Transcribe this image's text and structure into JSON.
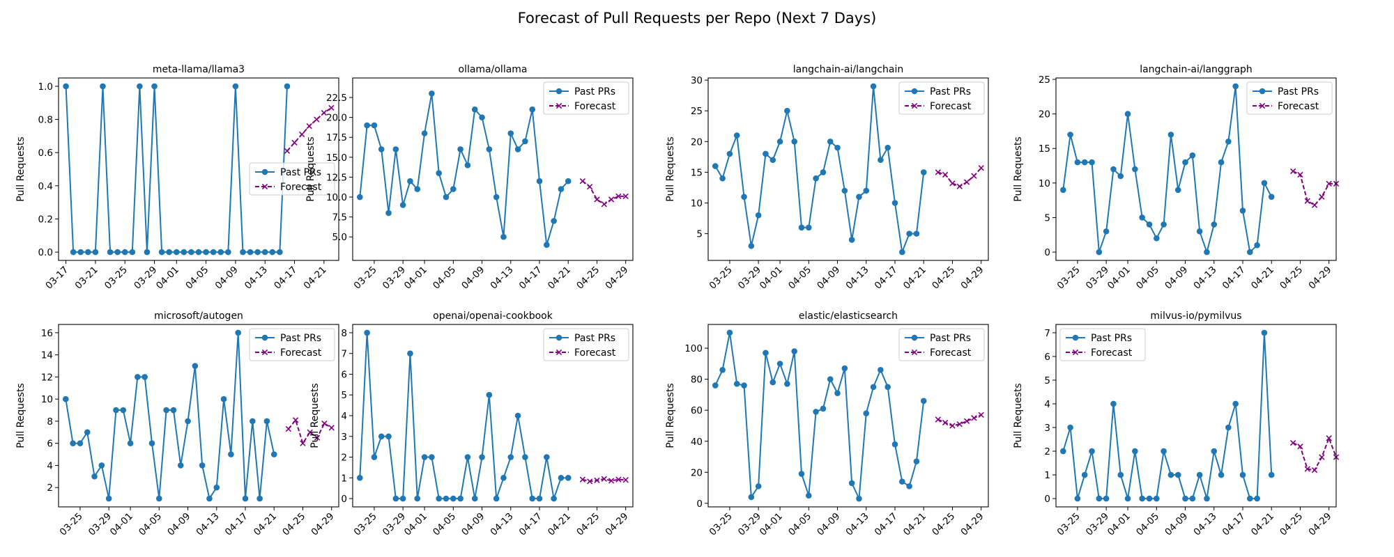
{
  "figure": {
    "title": "Forecast of Pull Requests per Repo (Next 7 Days)"
  },
  "colors": {
    "past": "#1f77b4",
    "forecast": "#800080"
  },
  "chart_data": [
    {
      "type": "line",
      "title": "meta-llama/llama3",
      "ylabel": "Pull Requests",
      "xlim": [
        "2025-03-16",
        "2025-04-23"
      ],
      "ylim": [
        -0.05,
        1.05
      ],
      "yticks": [
        0.0,
        0.2,
        0.4,
        0.6,
        0.8,
        1.0
      ],
      "ytick_labels": [
        "0.0",
        "0.2",
        "0.4",
        "0.6",
        "0.8",
        "1.0"
      ],
      "xticks": [
        "2025-03-17",
        "2025-03-21",
        "2025-03-25",
        "2025-03-29",
        "2025-04-01",
        "2025-04-05",
        "2025-04-09",
        "2025-04-13",
        "2025-04-17",
        "2025-04-21"
      ],
      "xtick_labels": [
        "03-17",
        "03-21",
        "03-25",
        "03-29",
        "04-01",
        "04-05",
        "04-09",
        "04-13",
        "04-17",
        "04-21"
      ],
      "legend": {
        "location": "center-right"
      },
      "series": [
        {
          "name": "Past PRs",
          "style": "solid-circle",
          "start": "2025-03-17",
          "values": [
            1,
            0,
            0,
            0,
            0,
            1,
            0,
            0,
            0,
            0,
            1,
            0,
            1,
            0,
            0,
            0,
            0,
            0,
            0,
            0,
            0,
            0,
            0,
            1,
            0,
            0,
            0,
            0,
            0,
            0,
            1
          ]
        },
        {
          "name": "Forecast",
          "style": "dashed-x",
          "start": "2025-04-16",
          "values": [
            0.61,
            0.66,
            0.71,
            0.76,
            0.8,
            0.84,
            0.87
          ]
        }
      ]
    },
    {
      "type": "line",
      "title": "ollama/ollama",
      "ylabel": "Pull Requests",
      "xlim": [
        "2025-03-22",
        "2025-04-30"
      ],
      "ylim": [
        2.05,
        24.95
      ],
      "yticks": [
        5.0,
        7.5,
        10.0,
        12.5,
        15.0,
        17.5,
        20.0,
        22.5
      ],
      "ytick_labels": [
        "5.0",
        "7.5",
        "10.0",
        "12.5",
        "15.0",
        "17.5",
        "20.0",
        "22.5"
      ],
      "xticks": [
        "2025-03-25",
        "2025-03-29",
        "2025-04-01",
        "2025-04-05",
        "2025-04-09",
        "2025-04-13",
        "2025-04-17",
        "2025-04-21",
        "2025-04-25",
        "2025-04-29"
      ],
      "xtick_labels": [
        "03-25",
        "03-29",
        "04-01",
        "04-05",
        "04-09",
        "04-13",
        "04-17",
        "04-21",
        "04-25",
        "04-29"
      ],
      "legend": {
        "location": "top-right"
      },
      "series": [
        {
          "name": "Past PRs",
          "style": "solid-circle",
          "start": "2025-03-23",
          "values": [
            10,
            19,
            19,
            16,
            8,
            16,
            9,
            12,
            11,
            18,
            23,
            13,
            10,
            11,
            16,
            14,
            21,
            20,
            16,
            10,
            5,
            18,
            16,
            17,
            21,
            12,
            4,
            7,
            11,
            12
          ]
        },
        {
          "name": "Forecast",
          "style": "dashed-x",
          "start": "2025-04-23",
          "values": [
            12.0,
            11.3,
            9.7,
            9.1,
            9.7,
            10.1,
            10.1
          ]
        }
      ]
    },
    {
      "type": "line",
      "title": "langchain-ai/langchain",
      "ylabel": "Pull Requests",
      "xlim": [
        "2025-03-22",
        "2025-04-30"
      ],
      "ylim": [
        0.65,
        30.35
      ],
      "yticks": [
        5,
        10,
        15,
        20,
        25,
        30
      ],
      "ytick_labels": [
        "5",
        "10",
        "15",
        "20",
        "25",
        "30"
      ],
      "xticks": [
        "2025-03-25",
        "2025-03-29",
        "2025-04-01",
        "2025-04-05",
        "2025-04-09",
        "2025-04-13",
        "2025-04-17",
        "2025-04-21",
        "2025-04-25",
        "2025-04-29"
      ],
      "xtick_labels": [
        "03-25",
        "03-29",
        "04-01",
        "04-05",
        "04-09",
        "04-13",
        "04-17",
        "04-21",
        "04-25",
        "04-29"
      ],
      "legend": {
        "location": "top-right"
      },
      "series": [
        {
          "name": "Past PRs",
          "style": "solid-circle",
          "start": "2025-03-23",
          "values": [
            16,
            14,
            18,
            21,
            11,
            3,
            8,
            18,
            17,
            20,
            25,
            20,
            6,
            6,
            14,
            15,
            20,
            19,
            12,
            4,
            11,
            12,
            29,
            17,
            19,
            10,
            2,
            5,
            5,
            15
          ]
        },
        {
          "name": "Forecast",
          "style": "dashed-x",
          "start": "2025-04-23",
          "values": [
            15.0,
            14.6,
            13.2,
            12.7,
            13.4,
            14.4,
            15.7
          ]
        }
      ]
    },
    {
      "type": "line",
      "title": "langchain-ai/langgraph",
      "ylabel": "Pull Requests",
      "xlim": [
        "2025-03-22",
        "2025-04-30"
      ],
      "ylim": [
        -1.2,
        25.2
      ],
      "yticks": [
        0,
        5,
        10,
        15,
        20,
        25
      ],
      "ytick_labels": [
        "0",
        "5",
        "10",
        "15",
        "20",
        "25"
      ],
      "xticks": [
        "2025-03-25",
        "2025-03-29",
        "2025-04-01",
        "2025-04-05",
        "2025-04-09",
        "2025-04-13",
        "2025-04-17",
        "2025-04-21",
        "2025-04-25",
        "2025-04-29"
      ],
      "xtick_labels": [
        "03-25",
        "03-29",
        "04-01",
        "04-05",
        "04-09",
        "04-13",
        "04-17",
        "04-21",
        "04-25",
        "04-29"
      ],
      "legend": {
        "location": "top-right"
      },
      "series": [
        {
          "name": "Past PRs",
          "style": "solid-circle",
          "start": "2025-03-23",
          "values": [
            9,
            17,
            13,
            13,
            13,
            0,
            3,
            12,
            11,
            20,
            12,
            5,
            4,
            2,
            4,
            17,
            9,
            13,
            14,
            3,
            0,
            4,
            13,
            16,
            24,
            6,
            0,
            1,
            10,
            8
          ]
        },
        {
          "name": "Forecast",
          "style": "dashed-x",
          "start": "2025-04-24",
          "values": [
            11.7,
            11.2,
            7.4,
            6.8,
            8.0,
            9.9,
            9.9
          ]
        }
      ]
    },
    {
      "type": "line",
      "title": "microsoft/autogen",
      "ylabel": "Pull Requests",
      "xlim": [
        "2025-03-22",
        "2025-04-30"
      ],
      "ylim": [
        0.25,
        16.75
      ],
      "yticks": [
        2,
        4,
        6,
        8,
        10,
        12,
        14,
        16
      ],
      "ytick_labels": [
        "2",
        "4",
        "6",
        "8",
        "10",
        "12",
        "14",
        "16"
      ],
      "xticks": [
        "2025-03-25",
        "2025-03-29",
        "2025-04-01",
        "2025-04-05",
        "2025-04-09",
        "2025-04-13",
        "2025-04-17",
        "2025-04-21",
        "2025-04-25",
        "2025-04-29"
      ],
      "xtick_labels": [
        "03-25",
        "03-29",
        "04-01",
        "04-05",
        "04-09",
        "04-13",
        "04-17",
        "04-21",
        "04-25",
        "04-29"
      ],
      "legend": {
        "location": "top-right"
      },
      "series": [
        {
          "name": "Past PRs",
          "style": "solid-circle",
          "start": "2025-03-23",
          "values": [
            10,
            6,
            6,
            7,
            3,
            4,
            1,
            9,
            9,
            6,
            12,
            12,
            6,
            1,
            9,
            9,
            4,
            8,
            13,
            4,
            1,
            2,
            10,
            5,
            16,
            1,
            8,
            1,
            8,
            5
          ]
        },
        {
          "name": "Forecast",
          "style": "dashed-x",
          "start": "2025-04-23",
          "values": [
            7.3,
            8.1,
            6.0,
            7.0,
            6.5,
            7.8,
            7.4
          ]
        }
      ]
    },
    {
      "type": "line",
      "title": "openai/openai-cookbook",
      "ylabel": "Pull Requests",
      "xlim": [
        "2025-03-22",
        "2025-04-30"
      ],
      "ylim": [
        -0.4,
        8.4
      ],
      "yticks": [
        0,
        1,
        2,
        3,
        4,
        5,
        6,
        7,
        8
      ],
      "ytick_labels": [
        "0",
        "1",
        "2",
        "3",
        "4",
        "5",
        "6",
        "7",
        "8"
      ],
      "xticks": [
        "2025-03-25",
        "2025-03-29",
        "2025-04-01",
        "2025-04-05",
        "2025-04-09",
        "2025-04-13",
        "2025-04-17",
        "2025-04-21",
        "2025-04-25",
        "2025-04-29"
      ],
      "xtick_labels": [
        "03-25",
        "03-29",
        "04-01",
        "04-05",
        "04-09",
        "04-13",
        "04-17",
        "04-21",
        "04-25",
        "04-29"
      ],
      "legend": {
        "location": "top-right"
      },
      "series": [
        {
          "name": "Past PRs",
          "style": "solid-circle",
          "start": "2025-03-23",
          "values": [
            1,
            8,
            2,
            3,
            3,
            0,
            0,
            7,
            0,
            2,
            2,
            0,
            0,
            0,
            0,
            2,
            0,
            2,
            5,
            0,
            1,
            2,
            4,
            2,
            0,
            0,
            2,
            0,
            1,
            1
          ]
        },
        {
          "name": "Forecast",
          "style": "dashed-x",
          "start": "2025-04-23",
          "values": [
            0.92,
            0.83,
            0.88,
            0.95,
            0.86,
            0.92,
            0.9
          ]
        }
      ]
    },
    {
      "type": "line",
      "title": "elastic/elasticsearch",
      "ylabel": "Pull Requests",
      "xlim": [
        "2025-03-22",
        "2025-04-30"
      ],
      "ylim": [
        -2.3,
        115.3
      ],
      "yticks": [
        0,
        20,
        40,
        60,
        80,
        100
      ],
      "ytick_labels": [
        "0",
        "20",
        "40",
        "60",
        "80",
        "100"
      ],
      "xticks": [
        "2025-03-25",
        "2025-03-29",
        "2025-04-01",
        "2025-04-05",
        "2025-04-09",
        "2025-04-13",
        "2025-04-17",
        "2025-04-21",
        "2025-04-25",
        "2025-04-29"
      ],
      "xtick_labels": [
        "03-25",
        "03-29",
        "04-01",
        "04-05",
        "04-09",
        "04-13",
        "04-17",
        "04-21",
        "04-25",
        "04-29"
      ],
      "legend": {
        "location": "top-right"
      },
      "series": [
        {
          "name": "Past PRs",
          "style": "solid-circle",
          "start": "2025-03-23",
          "values": [
            76,
            86,
            110,
            77,
            76,
            4,
            11,
            97,
            78,
            90,
            77,
            98,
            19,
            5,
            59,
            61,
            80,
            71,
            87,
            13,
            3,
            58,
            75,
            86,
            75,
            38,
            14,
            11,
            27,
            66
          ]
        },
        {
          "name": "Forecast",
          "style": "dashed-x",
          "start": "2025-04-23",
          "values": [
            54,
            52,
            50,
            51,
            53,
            55,
            57
          ]
        }
      ]
    },
    {
      "type": "line",
      "title": "milvus-io/pymilvus",
      "ylabel": "Pull Requests",
      "xlim": [
        "2025-03-22",
        "2025-04-30"
      ],
      "ylim": [
        -0.35,
        7.35
      ],
      "yticks": [
        0,
        1,
        2,
        3,
        4,
        5,
        6,
        7
      ],
      "ytick_labels": [
        "0",
        "1",
        "2",
        "3",
        "4",
        "5",
        "6",
        "7"
      ],
      "xticks": [
        "2025-03-25",
        "2025-03-29",
        "2025-04-01",
        "2025-04-05",
        "2025-04-09",
        "2025-04-13",
        "2025-04-17",
        "2025-04-21",
        "2025-04-25",
        "2025-04-29"
      ],
      "xtick_labels": [
        "03-25",
        "03-29",
        "04-01",
        "04-05",
        "04-09",
        "04-13",
        "04-17",
        "04-21",
        "04-25",
        "04-29"
      ],
      "legend": {
        "location": "top-left"
      },
      "series": [
        {
          "name": "Past PRs",
          "style": "solid-circle",
          "start": "2025-03-23",
          "values": [
            2,
            3,
            0,
            1,
            2,
            0,
            0,
            4,
            1,
            0,
            2,
            0,
            0,
            0,
            2,
            1,
            1,
            0,
            0,
            1,
            0,
            2,
            1,
            3,
            4,
            1,
            0,
            0,
            7,
            1
          ]
        },
        {
          "name": "Forecast",
          "style": "dashed-x",
          "start": "2025-04-24",
          "values": [
            2.35,
            2.2,
            1.25,
            1.2,
            1.75,
            2.55,
            1.75
          ]
        }
      ]
    }
  ]
}
